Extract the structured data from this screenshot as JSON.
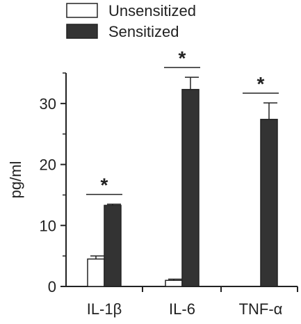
{
  "chart_data": {
    "type": "bar",
    "title": "",
    "xlabel": "",
    "ylabel": "pg/ml",
    "ylim": [
      0,
      35
    ],
    "yticks": [
      0,
      10,
      20,
      30
    ],
    "categories": [
      "IL-1β",
      "IL-6",
      "TNF-α"
    ],
    "series": [
      {
        "name": "Unsensitized",
        "color": "#ffffff",
        "values": [
          4.5,
          1.0,
          0
        ],
        "errors": [
          0.5,
          0.2,
          0
        ]
      },
      {
        "name": "Sensitized",
        "color": "#333333",
        "values": [
          13.3,
          32.3,
          27.4
        ],
        "errors": [
          0.2,
          2.0,
          2.7
        ]
      }
    ],
    "significance": [
      {
        "category": "IL-1β",
        "label": "*"
      },
      {
        "category": "IL-6",
        "label": "*"
      },
      {
        "category": "TNF-α",
        "label": "*"
      }
    ],
    "legend_position": "top"
  }
}
